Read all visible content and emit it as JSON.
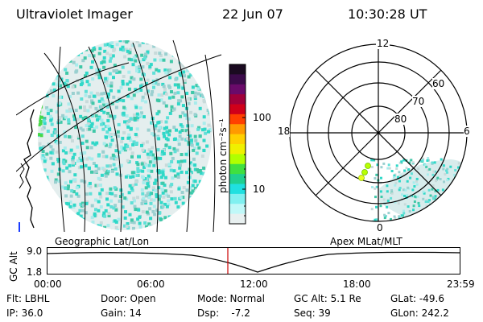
{
  "header": {
    "instrument": "Ultraviolet Imager",
    "date": "22 Jun 07",
    "time": "10:30:28 UT"
  },
  "colorbar": {
    "unit_label": "photon cm⁻²s⁻¹",
    "ticks": [
      "100",
      "10"
    ],
    "colors": [
      "#1a0a20",
      "#3b0a4a",
      "#6a0a6a",
      "#a0003a",
      "#d0001a",
      "#ff4000",
      "#ff9a00",
      "#ffd000",
      "#f0f000",
      "#b0ff00",
      "#40e040",
      "#20d090",
      "#20e0e0",
      "#80f0f0",
      "#c0f8f8",
      "#e8f0f0"
    ]
  },
  "left_map": {
    "caption": "Geographic Lat/Lon",
    "emission_color": "#30d8c8",
    "background_noise_color": "#d8e8e8"
  },
  "polar_plot": {
    "caption": "Apex MLat/MLT",
    "mlt_labels": {
      "top": "12",
      "left": "18",
      "right": "6",
      "bottom": "0"
    },
    "mlat_labels": [
      "60",
      "70",
      "80"
    ],
    "emission_color": "#30d8c8"
  },
  "altitude_plot": {
    "ylabel": "GC Alt",
    "yticks": [
      "9.0",
      "1.8"
    ],
    "xticks": [
      "00:00",
      "06:00",
      "12:00",
      "18:00",
      "23:59"
    ],
    "current_time_marker_color": "#cc0000"
  },
  "status": {
    "flt": "Flt: LBHL",
    "ip": "IP: 36.0",
    "door": "Door: Open",
    "gain": "Gain: 14",
    "mode": "Mode: Normal",
    "dsp": "Dsp:    -7.2",
    "gc_alt": "GC Alt: 5.1 Re",
    "seq": "Seq: 39",
    "glat": "GLat: -49.6",
    "glon": "GLon: 242.2"
  }
}
